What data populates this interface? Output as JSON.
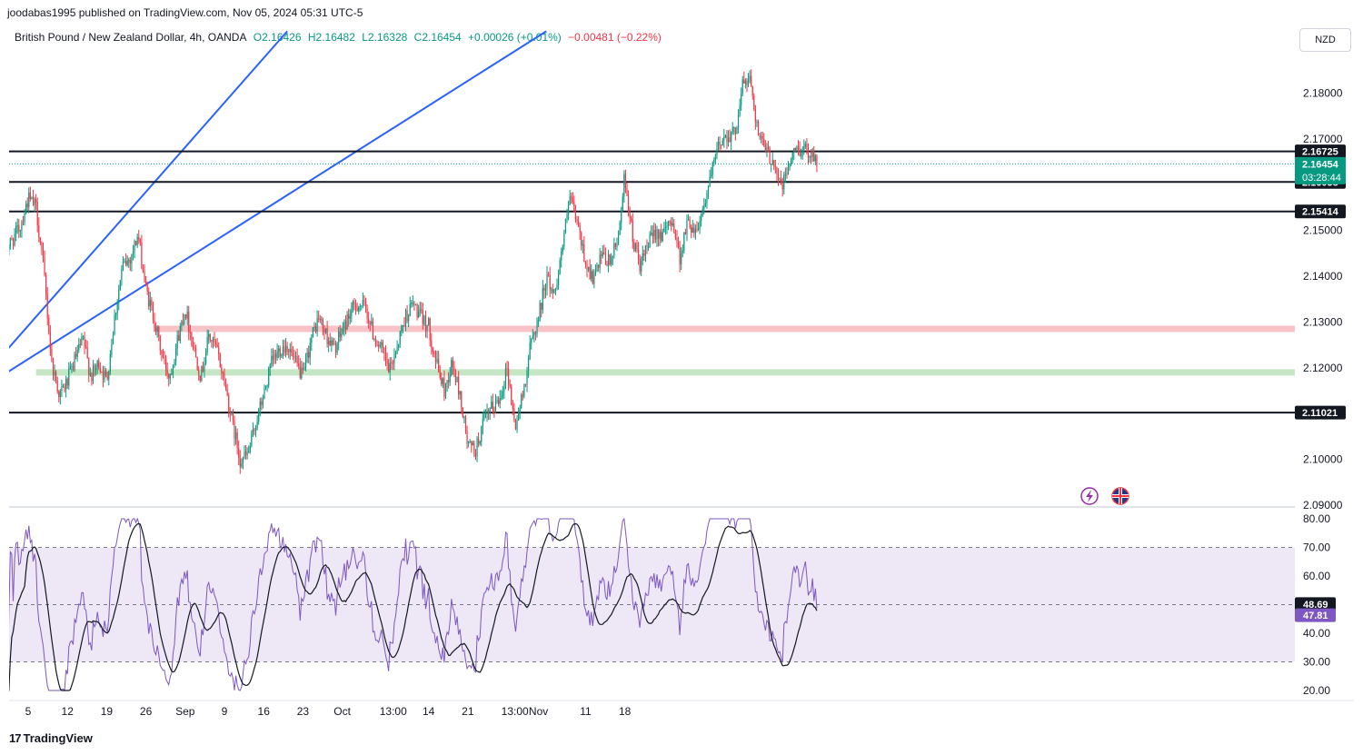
{
  "header": {
    "published": "joodabas1995 published on TradingView.com, Nov 05, 2024 05:31 UTC-5",
    "symbol": "British Pound / New Zealand Dollar, 4h, OANDA",
    "open": "O2.16426",
    "high": "H2.16482",
    "low": "L2.16328",
    "close": "C2.16454",
    "change": "+0.00026 (+0.01%)",
    "change_alt": "−0.00481 (−0.22%)"
  },
  "currency_button": "NZD",
  "brand": {
    "logo": "17",
    "name": "TradingView"
  },
  "colors": {
    "up": "#089981",
    "down": "#f23645",
    "trendline": "#2962ff",
    "resistance_zone": "#f7c3c6",
    "support_zone": "#c5e6c5",
    "rsi": "#7e57c2",
    "rsi_ma": "#131722",
    "rsi_band": "#ede7f6",
    "last_price": "#089981"
  },
  "icons": [
    "lightning-icon",
    "uk-flag-icon"
  ],
  "chart_data": [
    {
      "type": "candlestick",
      "pair": "GBP/NZD",
      "timeframe": "4h",
      "ylim": [
        2.09,
        2.19
      ],
      "price_ticks": [
        "2.18000",
        "2.17000",
        "2.15000",
        "2.14000",
        "2.13000",
        "2.12000",
        "2.10000",
        "2.09000"
      ],
      "x_ticks": [
        "5",
        "12",
        "19",
        "26",
        "Sep",
        "9",
        "16",
        "23",
        "Oct",
        "13:00",
        "14",
        "21",
        "13:00",
        "Nov",
        "11",
        "18"
      ],
      "horizontal_levels": [
        {
          "label": "2.16725",
          "value": 2.16725
        },
        {
          "label": "2.16058",
          "value": 2.16058
        },
        {
          "label": "2.15414",
          "value": 2.15414
        },
        {
          "label": "2.11021",
          "value": 2.11021
        }
      ],
      "last_price": {
        "label": "2.16454",
        "countdown": "03:28:44",
        "value": 2.16454
      },
      "zones": [
        {
          "kind": "resistance",
          "value": 2.1285,
          "from_day": 16,
          "to_day": 999
        },
        {
          "kind": "support",
          "value": 2.119,
          "from_day": 1,
          "to_day": 999
        }
      ],
      "trendlines": [
        {
          "from": [
            -26,
            2.0785
          ],
          "to": [
            33,
            2.1935
          ]
        },
        {
          "from": [
            -40,
            2.0785
          ],
          "to": [
            66,
            2.1935
          ]
        }
      ],
      "path_anchors": [
        [
          -3,
          2.145
        ],
        [
          -1,
          2.151
        ],
        [
          0,
          2.157
        ],
        [
          1,
          2.155
        ],
        [
          2,
          2.141
        ],
        [
          3,
          2.121
        ],
        [
          4,
          2.114
        ],
        [
          5,
          2.117
        ],
        [
          6,
          2.122
        ],
        [
          7,
          2.126
        ],
        [
          8,
          2.118
        ],
        [
          9,
          2.121
        ],
        [
          10,
          2.117
        ],
        [
          11,
          2.131
        ],
        [
          12,
          2.142
        ],
        [
          13,
          2.144
        ],
        [
          14,
          2.149
        ],
        [
          15,
          2.137
        ],
        [
          16,
          2.131
        ],
        [
          17,
          2.123
        ],
        [
          18,
          2.118
        ],
        [
          19,
          2.126
        ],
        [
          20,
          2.133
        ],
        [
          21,
          2.125
        ],
        [
          22,
          2.118
        ],
        [
          23,
          2.127
        ],
        [
          24,
          2.124
        ],
        [
          25,
          2.117
        ],
        [
          26,
          2.108
        ],
        [
          27,
          2.1
        ],
        [
          28,
          2.101
        ],
        [
          29,
          2.108
        ],
        [
          30,
          2.114
        ],
        [
          31,
          2.121
        ],
        [
          32,
          2.124
        ],
        [
          33,
          2.125
        ],
        [
          34,
          2.121
        ],
        [
          35,
          2.118
        ],
        [
          36,
          2.126
        ],
        [
          37,
          2.131
        ],
        [
          38,
          2.127
        ],
        [
          39,
          2.124
        ],
        [
          40,
          2.128
        ],
        [
          41,
          2.132
        ],
        [
          42,
          2.134
        ],
        [
          43,
          2.133
        ],
        [
          44,
          2.127
        ],
        [
          45,
          2.124
        ],
        [
          46,
          2.119
        ],
        [
          47,
          2.125
        ],
        [
          48,
          2.131
        ],
        [
          49,
          2.134
        ],
        [
          50,
          2.131
        ],
        [
          51,
          2.129
        ],
        [
          52,
          2.121
        ],
        [
          53,
          2.115
        ],
        [
          54,
          2.121
        ],
        [
          55,
          2.114
        ],
        [
          56,
          2.103
        ],
        [
          57,
          2.102
        ],
        [
          58,
          2.108
        ],
        [
          59,
          2.111
        ],
        [
          60,
          2.113
        ],
        [
          61,
          2.12
        ],
        [
          62,
          2.107
        ],
        [
          63,
          2.114
        ],
        [
          64,
          2.125
        ],
        [
          65,
          2.131
        ],
        [
          66,
          2.14
        ],
        [
          67,
          2.136
        ],
        [
          68,
          2.146
        ],
        [
          69,
          2.157
        ],
        [
          70,
          2.151
        ],
        [
          71,
          2.143
        ],
        [
          72,
          2.139
        ],
        [
          73,
          2.144
        ],
        [
          74,
          2.143
        ],
        [
          75,
          2.147
        ],
        [
          76,
          2.162
        ],
        [
          77,
          2.148
        ],
        [
          78,
          2.142
        ],
        [
          79,
          2.147
        ],
        [
          80,
          2.15
        ],
        [
          81,
          2.149
        ],
        [
          82,
          2.153
        ],
        [
          83,
          2.144
        ],
        [
          84,
          2.152
        ],
        [
          85,
          2.15
        ],
        [
          86,
          2.155
        ],
        [
          87,
          2.162
        ],
        [
          88,
          2.169
        ],
        [
          89,
          2.171
        ],
        [
          90,
          2.171
        ],
        [
          91,
          2.182
        ],
        [
          92,
          2.183
        ],
        [
          93,
          2.171
        ],
        [
          94,
          2.167
        ],
        [
          95,
          2.165
        ],
        [
          96,
          2.159
        ],
        [
          97,
          2.165
        ],
        [
          98,
          2.168
        ],
        [
          99,
          2.1675
        ],
        [
          100,
          2.167
        ],
        [
          100.6,
          2.1645
        ]
      ],
      "rsi": {
        "ylim": [
          20,
          80
        ],
        "ticks": [
          "80.00",
          "70.00",
          "60.00",
          "40.00",
          "30.00",
          "20.00"
        ],
        "upper_band": 70,
        "middle_band": 50,
        "lower_band": 30,
        "rsi_label": "48.69",
        "rsi_value": 48.69,
        "ma_label": "47.81",
        "ma_value": 47.81
      }
    }
  ]
}
